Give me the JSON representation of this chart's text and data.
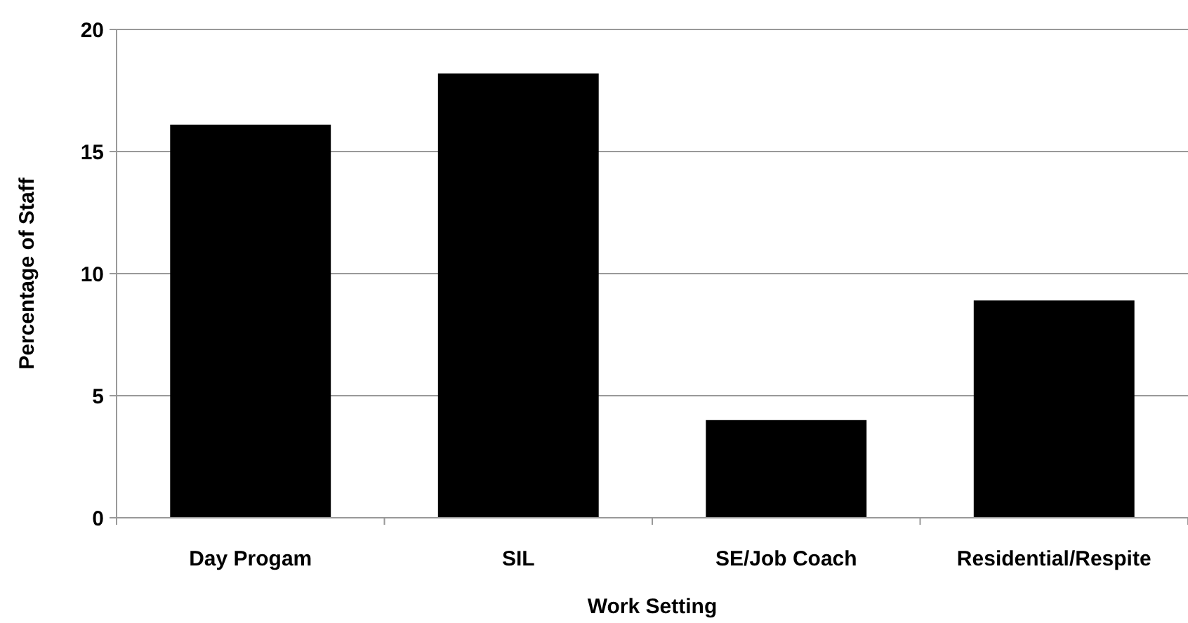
{
  "chart_data": {
    "type": "bar",
    "xlabel": "Work Setting",
    "ylabel": "Percentage of Staff",
    "categories": [
      "Day Progam",
      "SIL",
      "SE/Job Coach",
      "Residential/Respite"
    ],
    "values": [
      16.1,
      18.2,
      4.0,
      8.9
    ],
    "color": "#000000",
    "ylim": [
      0,
      20
    ],
    "yticks": [
      0,
      5,
      10,
      15,
      20
    ],
    "grid": "y"
  }
}
